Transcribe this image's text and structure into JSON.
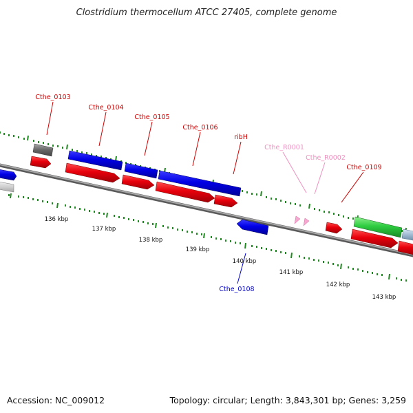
{
  "title": "Clostridium thermocellum ATCC 27405, complete genome",
  "footer": {
    "accession": "Accession: NC_009012",
    "info": "Topology: circular; Length: 3,843,301 bp; Genes: 3,259"
  },
  "kbp_labels": [
    "136 kbp",
    "137 kbp",
    "138 kbp",
    "139 kbp",
    "140 kbp",
    "141 kbp",
    "142 kbp",
    "143 kbp"
  ],
  "gene_labels": [
    {
      "id": "Cthe_0103",
      "name": "gene-label-cthe-0103",
      "color": "#cc0000"
    },
    {
      "id": "Cthe_0104",
      "name": "gene-label-cthe-0104",
      "color": "#cc0000"
    },
    {
      "id": "Cthe_0105",
      "name": "gene-label-cthe-0105",
      "color": "#cc0000"
    },
    {
      "id": "Cthe_0106",
      "name": "gene-label-cthe-0106",
      "color": "#cc0000"
    },
    {
      "id": "ribH",
      "name": "gene-label-ribh",
      "color": "#cc0000"
    },
    {
      "id": "Cthe_R0001",
      "name": "gene-label-cthe-r0001",
      "color": "#f08fbf"
    },
    {
      "id": "Cthe_R0002",
      "name": "gene-label-cthe-r0002",
      "color": "#f08fbf"
    },
    {
      "id": "Cthe_0109",
      "name": "gene-label-cthe-0109",
      "color": "#cc0000"
    },
    {
      "id": "Cthe_0108",
      "name": "gene-label-cthe-0108",
      "color": "#0000cc"
    }
  ],
  "colors": {
    "cds": "#e8000b",
    "gene_blue": "#0000e6",
    "rrna": "#f7a8d0",
    "green": "#2ecc40",
    "gray": "#777777",
    "backbone": "#888888",
    "ticks": "#1f8a1f"
  }
}
